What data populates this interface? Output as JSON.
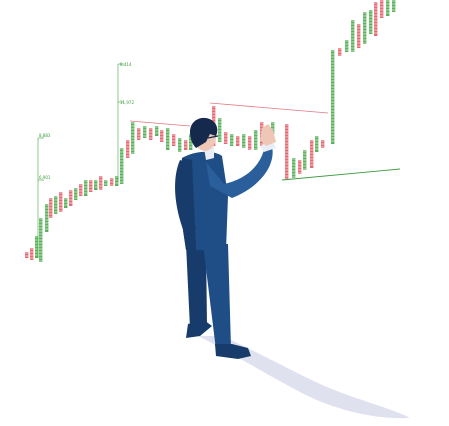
{
  "colors": {
    "up": "#3fa33f",
    "down": "#e0505a",
    "suit": "#1f4d86",
    "suit_dark": "#173b6a",
    "suit_shade": "#2a5f9c",
    "hair": "#15294d",
    "skin": "#eec7b6",
    "shadow": "#dfe2ee",
    "trend_line_red": "#e27880",
    "trend_line_green": "#3f9a3f"
  },
  "labels": {
    "l1": "8,883",
    "l2": "6,901",
    "l3": "8,414",
    "l4": "11,972"
  },
  "icons": {
    "figure": "businessman-analyst-illustration",
    "chart": "point-and-figure-chart"
  }
}
